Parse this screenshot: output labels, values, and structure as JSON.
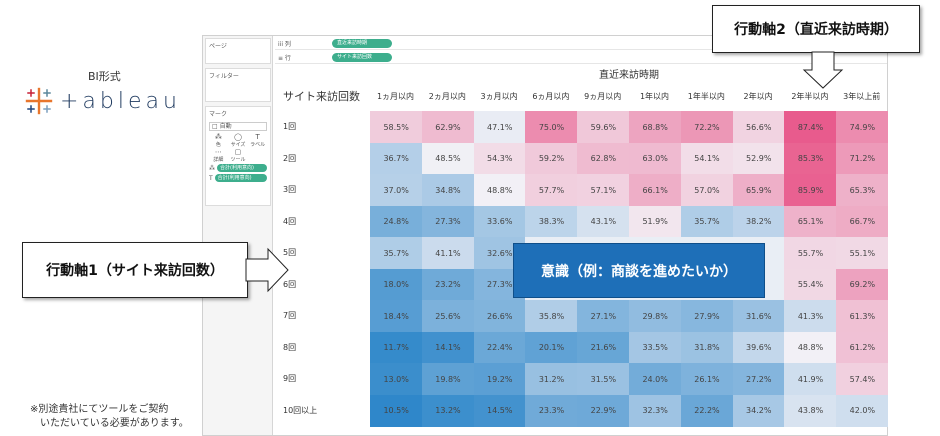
{
  "branding": {
    "title": "BI形式",
    "logo_text": "+ableau",
    "note_line1": "※別途貴社にてツールをご契約",
    "note_line2": "　いただいている必要があります。"
  },
  "tableau": {
    "left_panel": {
      "pages_title": "ページ",
      "filters_title": "フィルター",
      "marks_title": "マーク",
      "marks_type": "□ 自動",
      "mark_buttons": [
        {
          "glyph": "⁂",
          "label": "色"
        },
        {
          "glyph": "◯",
          "label": "サイズ"
        },
        {
          "glyph": "T",
          "label": "ラベル"
        },
        {
          "glyph": "⋯",
          "label": "詳細"
        },
        {
          "glyph": "▢",
          "label": "ツールヒ"
        }
      ],
      "pills": [
        "合計(利用意向)",
        "合計(利用意向)"
      ]
    },
    "shelves": {
      "columns_label": "iii 列",
      "columns_pill": "直近来訪時期",
      "rows_label": "≡ 行",
      "rows_pill": "サイト来訪回数"
    }
  },
  "heatmap": {
    "column_group_title": "直近来訪時期",
    "row_header_title": "サイト来訪回数",
    "columns": [
      "1ヵ月以内",
      "2ヵ月以内",
      "3ヵ月以内",
      "6ヵ月以内",
      "9ヵ月以内",
      "1年以内",
      "1年半以内",
      "2年以内",
      "2年半以内",
      "3年以上前"
    ],
    "rows": [
      {
        "label": "1回",
        "values": [
          "58.5%",
          "62.9%",
          "47.1%",
          "75.0%",
          "59.6%",
          "68.8%",
          "72.2%",
          "56.6%",
          "87.4%",
          "74.9%"
        ]
      },
      {
        "label": "2回",
        "values": [
          "36.7%",
          "48.5%",
          "54.3%",
          "59.2%",
          "62.8%",
          "63.0%",
          "54.1%",
          "52.9%",
          "85.3%",
          "71.2%"
        ]
      },
      {
        "label": "3回",
        "values": [
          "37.0%",
          "34.8%",
          "48.8%",
          "57.7%",
          "57.1%",
          "66.1%",
          "57.0%",
          "65.9%",
          "85.9%",
          "65.3%"
        ]
      },
      {
        "label": "4回",
        "values": [
          "24.8%",
          "27.3%",
          "33.6%",
          "38.3%",
          "43.1%",
          "51.9%",
          "35.7%",
          "38.2%",
          "65.1%",
          "66.7%"
        ]
      },
      {
        "label": "5回",
        "values": [
          "35.7%",
          "41.1%",
          "32.6%",
          "",
          "",
          "",
          "",
          "",
          "55.7%",
          "55.1%"
        ]
      },
      {
        "label": "6回",
        "values": [
          "18.0%",
          "23.2%",
          "27.3%",
          "",
          "",
          "",
          "",
          "",
          "55.4%",
          "69.2%"
        ]
      },
      {
        "label": "7回",
        "values": [
          "18.4%",
          "25.6%",
          "26.6%",
          "35.8%",
          "27.1%",
          "29.8%",
          "27.9%",
          "31.6%",
          "41.3%",
          "61.3%"
        ]
      },
      {
        "label": "8回",
        "values": [
          "11.7%",
          "14.1%",
          "22.4%",
          "20.1%",
          "21.6%",
          "33.5%",
          "31.8%",
          "39.6%",
          "48.8%",
          "61.2%"
        ]
      },
      {
        "label": "9回",
        "values": [
          "13.0%",
          "19.8%",
          "19.2%",
          "31.2%",
          "31.5%",
          "24.0%",
          "26.1%",
          "27.2%",
          "41.9%",
          "57.4%"
        ]
      },
      {
        "label": "10回以上",
        "values": [
          "10.5%",
          "13.2%",
          "14.5%",
          "23.3%",
          "22.9%",
          "32.3%",
          "22.2%",
          "34.2%",
          "43.8%",
          "42.0%"
        ]
      }
    ],
    "colors": {
      "low": "#2c86c9",
      "mid": "#f3f1f6",
      "high": "#e8598b"
    }
  },
  "callouts": {
    "axis2": "行動軸2（直近来訪時期）",
    "axis1": "行動軸1（サイト来訪回数）",
    "center": "意識（例：商談を進めたいか）"
  }
}
